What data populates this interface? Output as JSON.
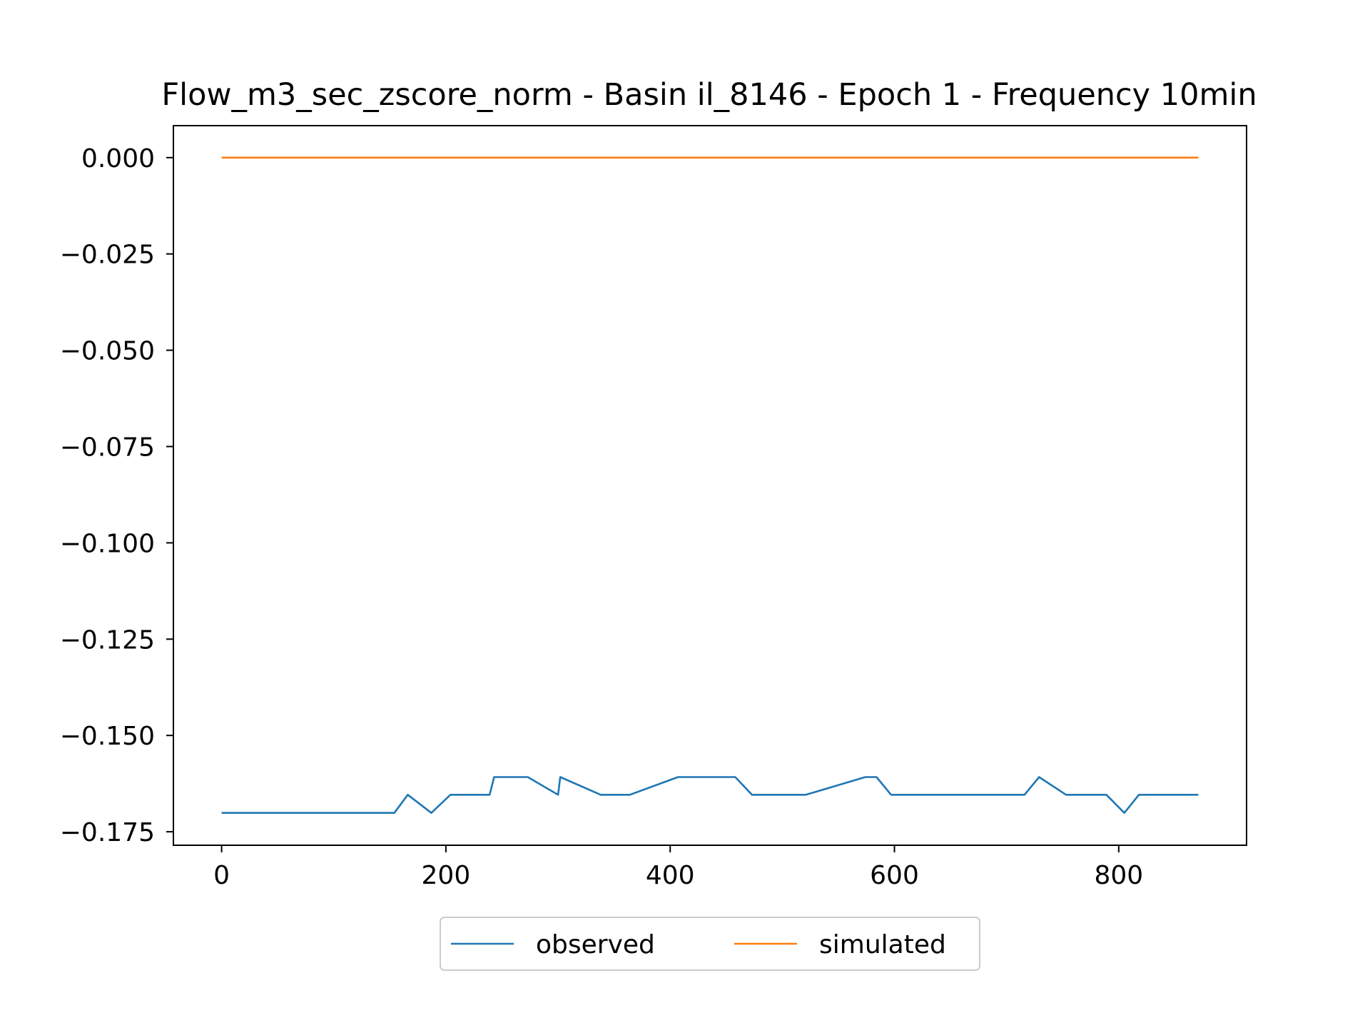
{
  "chart_data": {
    "type": "line",
    "title": "Flow_m3_sec_zscore_norm - Basin il_8146 - Epoch 1 - Frequency 10min",
    "xlabel": "",
    "ylabel": "",
    "xlim": [
      -43,
      914
    ],
    "ylim": [
      -0.1785,
      0.0083
    ],
    "xticks": [
      0,
      200,
      400,
      600,
      800
    ],
    "xtick_labels": [
      "0",
      "200",
      "400",
      "600",
      "800"
    ],
    "yticks": [
      0.0,
      -0.025,
      -0.05,
      -0.075,
      -0.1,
      -0.125,
      -0.15,
      -0.175
    ],
    "ytick_labels": [
      "0.000",
      "−0.025",
      "−0.050",
      "−0.075",
      "−0.100",
      "−0.125",
      "−0.150",
      "−0.175"
    ],
    "grid": false,
    "legend_placement": "bottom-center, below axes",
    "series": [
      {
        "name": "observed",
        "color": "#1f77b4",
        "points": [
          [
            0,
            -0.1701
          ],
          [
            154,
            -0.1701
          ],
          [
            166,
            -0.1654
          ],
          [
            187,
            -0.1701
          ],
          [
            204,
            -0.1654
          ],
          [
            239,
            -0.1654
          ],
          [
            243,
            -0.1608
          ],
          [
            273,
            -0.1608
          ],
          [
            300,
            -0.1654
          ],
          [
            302,
            -0.1608
          ],
          [
            338,
            -0.1654
          ],
          [
            364,
            -0.1654
          ],
          [
            407,
            -0.1608
          ],
          [
            458,
            -0.1608
          ],
          [
            473,
            -0.1654
          ],
          [
            521,
            -0.1654
          ],
          [
            574,
            -0.1608
          ],
          [
            584,
            -0.1608
          ],
          [
            597,
            -0.1654
          ],
          [
            716,
            -0.1654
          ],
          [
            729,
            -0.1608
          ],
          [
            753,
            -0.1654
          ],
          [
            789,
            -0.1654
          ],
          [
            805,
            -0.1701
          ],
          [
            818,
            -0.1654
          ],
          [
            871,
            -0.1654
          ]
        ]
      },
      {
        "name": "simulated",
        "color": "#ff7f0e",
        "points": [
          [
            0,
            0.0
          ],
          [
            871,
            0.0
          ]
        ]
      }
    ]
  }
}
